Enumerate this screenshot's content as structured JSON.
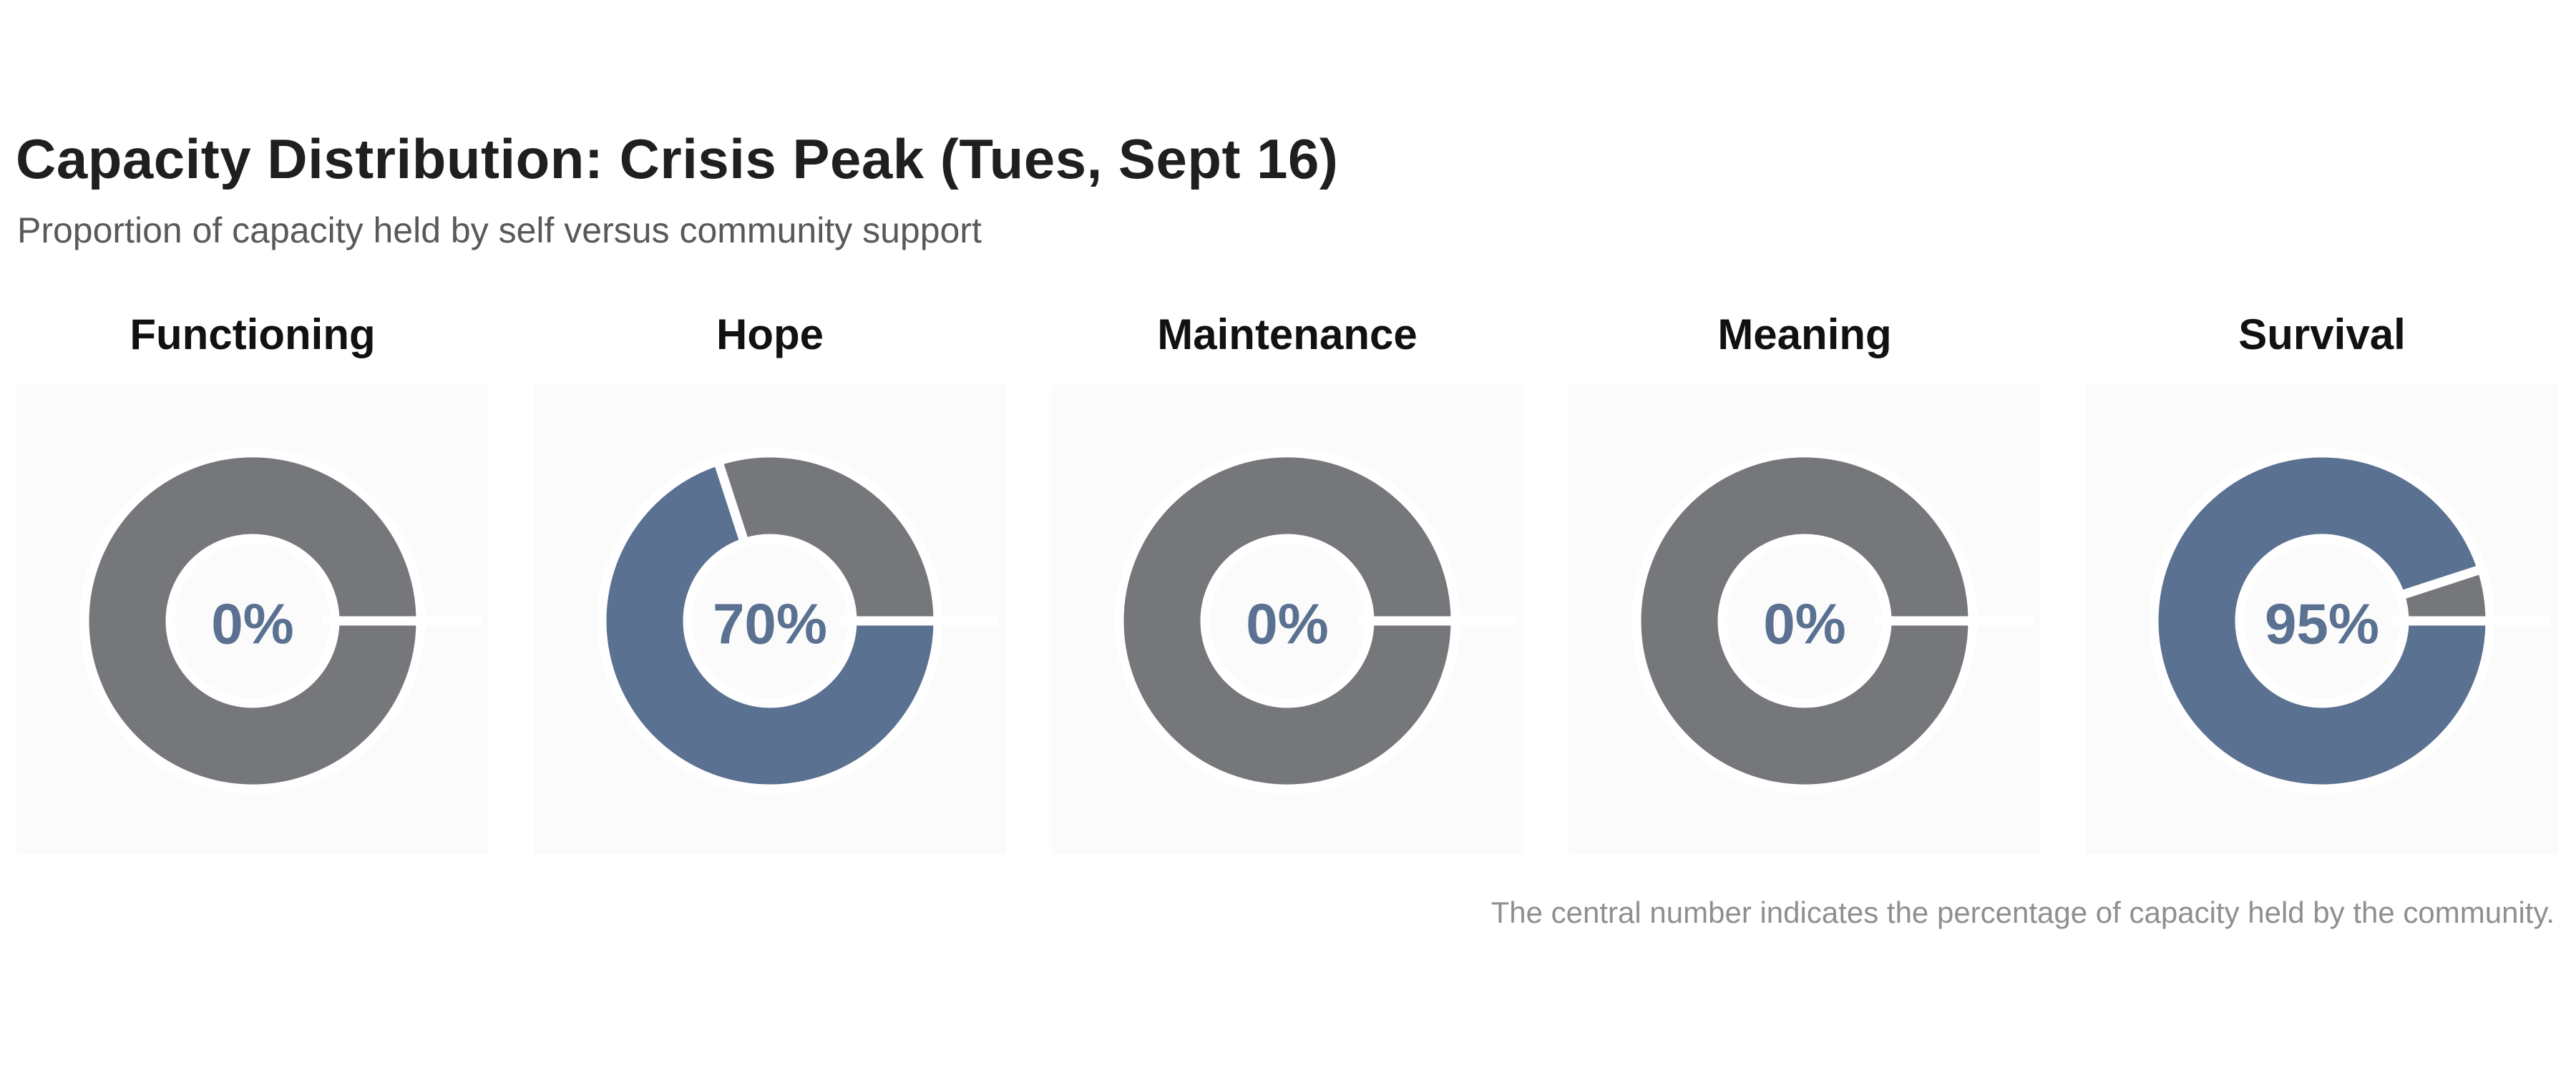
{
  "header": {
    "title": "Capacity Distribution: Crisis Peak (Tues, Sept 16)",
    "subtitle": "Proportion of capacity held by self versus community support"
  },
  "footer": {
    "note": "The central number indicates the percentage of capacity held by the community."
  },
  "colors": {
    "community": "#5a7191",
    "self": "#75777a",
    "center_label": "#5a7191",
    "card_bg": "#fbfbfb",
    "separator": "#ffffff"
  },
  "chart_data": {
    "type": "pie",
    "subtype": "donut",
    "start_angle_deg": 0,
    "direction": "clockwise",
    "donut_hole_ratio": 0.49,
    "legend": "none",
    "series_names": [
      "community",
      "self"
    ],
    "charts": [
      {
        "title": "Functioning",
        "community_pct": 0,
        "self_pct": 100,
        "center_label": "0%"
      },
      {
        "title": "Hope",
        "community_pct": 70,
        "self_pct": 30,
        "center_label": "70%"
      },
      {
        "title": "Maintenance",
        "community_pct": 0,
        "self_pct": 100,
        "center_label": "0%"
      },
      {
        "title": "Meaning",
        "community_pct": 0,
        "self_pct": 100,
        "center_label": "0%"
      },
      {
        "title": "Survival",
        "community_pct": 95,
        "self_pct": 5,
        "center_label": "95%"
      }
    ]
  }
}
